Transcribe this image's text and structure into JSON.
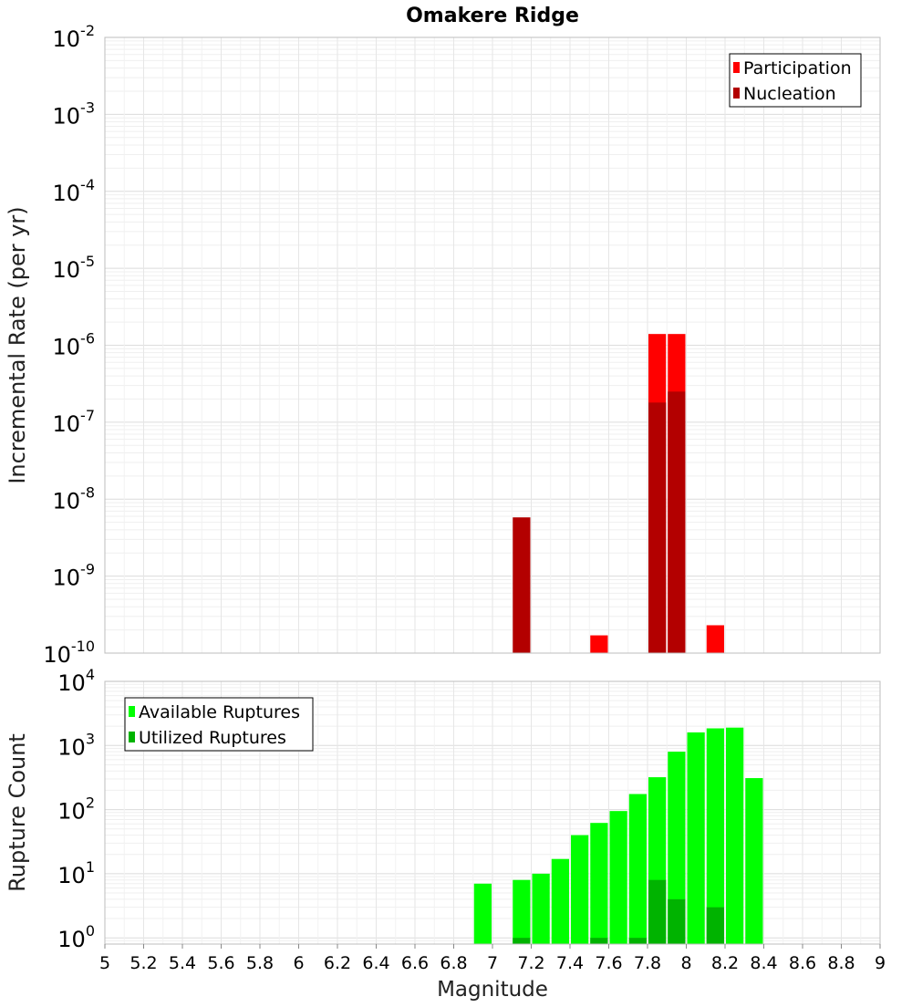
{
  "chart_data": [
    {
      "type": "bar",
      "title": "Omakere Ridge",
      "ylabel": "Incremental Rate (per yr)",
      "xlabel": "",
      "yscale": "log",
      "ylim": [
        1e-10,
        0.01
      ],
      "xlim": [
        5,
        9
      ],
      "y_tick_exponents": [
        -10,
        -9,
        -8,
        -7,
        -6,
        -5,
        -4,
        -3,
        -2
      ],
      "y_tick_base": "10",
      "grid": true,
      "legend_position": "top-right",
      "series": [
        {
          "name": "Participation",
          "color": "#ff0000",
          "points": [
            {
              "x": 7.55,
              "y": 1.7e-10
            },
            {
              "x": 7.85,
              "y": 1.4e-06
            },
            {
              "x": 7.95,
              "y": 1.4e-06
            },
            {
              "x": 8.15,
              "y": 2.3e-10
            }
          ]
        },
        {
          "name": "Nucleation",
          "color": "#b30000",
          "points": [
            {
              "x": 7.15,
              "y": 5.8e-09
            },
            {
              "x": 7.85,
              "y": 1.8e-07
            },
            {
              "x": 7.95,
              "y": 2.5e-07
            }
          ]
        }
      ]
    },
    {
      "type": "bar",
      "title": "",
      "ylabel": "Rupture Count",
      "xlabel": "Magnitude",
      "yscale": "log",
      "ylim": [
        0.8,
        10000
      ],
      "xlim": [
        5,
        9
      ],
      "x_ticks": [
        "5",
        "5.2",
        "5.4",
        "5.6",
        "5.8",
        "6",
        "6.2",
        "6.4",
        "6.6",
        "6.8",
        "7",
        "7.2",
        "7.4",
        "7.6",
        "7.8",
        "8",
        "8.2",
        "8.4",
        "8.6",
        "8.8",
        "9"
      ],
      "y_tick_exponents": [
        0,
        1,
        2,
        3,
        4
      ],
      "y_tick_base": "10",
      "grid": true,
      "legend_position": "top-left",
      "series": [
        {
          "name": "Available Ruptures",
          "color": "#00ff00",
          "points": [
            {
              "x": 6.95,
              "y": 7
            },
            {
              "x": 7.15,
              "y": 8
            },
            {
              "x": 7.25,
              "y": 10
            },
            {
              "x": 7.35,
              "y": 17
            },
            {
              "x": 7.45,
              "y": 40
            },
            {
              "x": 7.55,
              "y": 62
            },
            {
              "x": 7.65,
              "y": 95
            },
            {
              "x": 7.75,
              "y": 175
            },
            {
              "x": 7.85,
              "y": 320
            },
            {
              "x": 7.95,
              "y": 800
            },
            {
              "x": 8.05,
              "y": 1600
            },
            {
              "x": 8.15,
              "y": 1850
            },
            {
              "x": 8.25,
              "y": 1900
            },
            {
              "x": 8.35,
              "y": 310
            }
          ]
        },
        {
          "name": "Utilized Ruptures",
          "color": "#00b300",
          "points": [
            {
              "x": 7.15,
              "y": 1
            },
            {
              "x": 7.55,
              "y": 1
            },
            {
              "x": 7.75,
              "y": 1
            },
            {
              "x": 7.85,
              "y": 8
            },
            {
              "x": 7.95,
              "y": 4
            },
            {
              "x": 8.15,
              "y": 3
            }
          ]
        }
      ]
    }
  ]
}
